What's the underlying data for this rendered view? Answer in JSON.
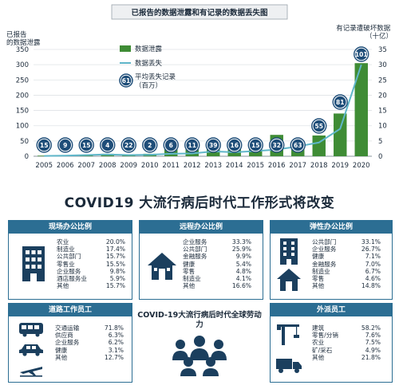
{
  "chart_data": {
    "type": "bar",
    "title": "已报告的数据泄露和有记录的数据丢失图",
    "ylabel_left": "已报告的数据泄露",
    "ylabel_right": "有记录遭破坏数据（十亿）",
    "ylim_left": [
      0,
      350
    ],
    "ylim_right": [
      0,
      35
    ],
    "yticks_left": [
      "0",
      "50",
      "100",
      "150",
      "200",
      "250",
      "300",
      "350"
    ],
    "yticks_right": [
      "0",
      "5",
      "10",
      "15",
      "20",
      "25",
      "30",
      "35"
    ],
    "categories": [
      "2005",
      "2006",
      "2007",
      "2008",
      "2009",
      "2010",
      "2011",
      "2012",
      "2013",
      "2014",
      "2015",
      "2016",
      "2017",
      "2018",
      "2019",
      "2020"
    ],
    "series": [
      {
        "name": "数据泄露",
        "kind": "bar",
        "color": "#3f8c35",
        "values": [
          2,
          3,
          5,
          8,
          6,
          8,
          35,
          28,
          30,
          39,
          44,
          70,
          38,
          68,
          140,
          305
        ]
      },
      {
        "name": "数据丢失",
        "kind": "line",
        "color": "#5fb6c9",
        "values": [
          0.1,
          0.2,
          0.4,
          0.6,
          0.4,
          0.5,
          0.8,
          0.9,
          1.6,
          1.3,
          1.7,
          2.2,
          3.2,
          4.5,
          9.0,
          30.0
        ]
      }
    ],
    "bubble_labels": [
      "15",
      "9",
      "15",
      "4",
      "22",
      "2",
      "6",
      "11",
      "39",
      "16",
      "15",
      "32",
      "63",
      "55",
      "81",
      "101"
    ],
    "legend": {
      "bar": "数据泄露",
      "line": "数据丢失",
      "bubble_value": "61",
      "bubble_label": "平均丢失记录（百万）",
      "position": "top-left"
    },
    "grid": true
  },
  "infographic": {
    "title": "COVID19 大流行病后时代工作形式将改变",
    "center_caption": "COVID-19大流行病后时代全球劳动力",
    "panels": {
      "office": {
        "title": "现场办公比例",
        "rows": [
          [
            "农业",
            "20.0%"
          ],
          [
            "制造业",
            "17.4%"
          ],
          [
            "公共部门",
            "15.7%"
          ],
          [
            "零售业",
            "15.5%"
          ],
          [
            "企业服务",
            "9.8%"
          ],
          [
            "酒店服务业",
            "5.9%"
          ],
          [
            "其他",
            "15.7%"
          ]
        ]
      },
      "remote": {
        "title": "远程办公比例",
        "rows": [
          [
            "企业服务",
            "33.3%"
          ],
          [
            "公共部门",
            "25.9%"
          ],
          [
            "金融服务",
            "9.9%"
          ],
          [
            "健康",
            "5.4%"
          ],
          [
            "零售",
            "4.8%"
          ],
          [
            "制造业",
            "4.1%"
          ],
          [
            "其他",
            "16.6%"
          ]
        ]
      },
      "flexible": {
        "title": "弹性办公比例",
        "rows": [
          [
            "公共部门",
            "33.1%"
          ],
          [
            "企业服务",
            "26.7%"
          ],
          [
            "健康",
            "7.1%"
          ],
          [
            "金融服务",
            "7.0%"
          ],
          [
            "制造业",
            "6.7%"
          ],
          [
            "零售",
            "4.6%"
          ],
          [
            "其他",
            "14.8%"
          ]
        ]
      },
      "road": {
        "title": "道路工作员工",
        "rows": [
          [
            "交通运输",
            "71.8%"
          ],
          [
            "供应商",
            "6.3%"
          ],
          [
            "企业服务",
            "6.2%"
          ],
          [
            "健康",
            "3.1%"
          ],
          [
            "其他",
            "12.7%"
          ]
        ]
      },
      "field": {
        "title": "外派员工",
        "rows": [
          [
            "建筑",
            "58.2%"
          ],
          [
            "零售/分销",
            "7.6%"
          ],
          [
            "农业",
            "7.5%"
          ],
          [
            "矿/采石",
            "4.9%"
          ],
          [
            "其他",
            "21.8%"
          ]
        ]
      }
    },
    "colors": {
      "accent": "#2c6e93",
      "dark": "#1b3f5e"
    }
  }
}
